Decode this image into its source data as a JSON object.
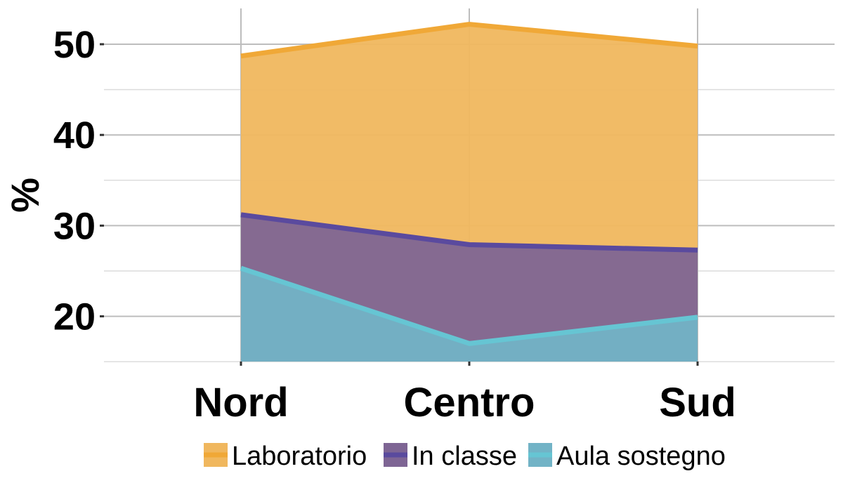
{
  "chart_data": {
    "type": "area",
    "title": "",
    "xlabel": "",
    "ylabel": "%",
    "categories": [
      "Nord",
      "Centro",
      "Sud"
    ],
    "ylim": [
      15,
      54
    ],
    "yticks": [
      20,
      30,
      40,
      50
    ],
    "grid": true,
    "legend_position": "bottom",
    "series": [
      {
        "name": "Laboratorio",
        "values": [
          48.7,
          52.2,
          49.8
        ],
        "line_color": "#F0A837",
        "fill_color": "#F0B75E"
      },
      {
        "name": "In classe",
        "values": [
          31.2,
          27.9,
          27.3
        ],
        "line_color": "#5A4A9E",
        "fill_color": "#7E6594"
      },
      {
        "name": "Aula sostegno",
        "values": [
          25.3,
          17.0,
          19.9
        ],
        "line_color": "#66C5D3",
        "fill_color": "#72B3C6"
      }
    ]
  }
}
